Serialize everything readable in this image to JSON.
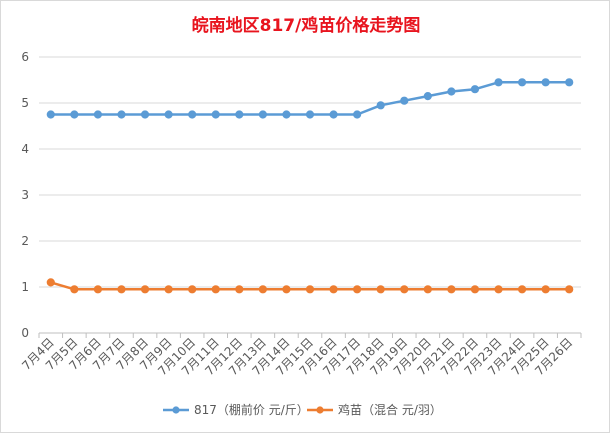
{
  "chart_data": {
    "type": "line",
    "title": "皖南地区817/鸡苗价格走势图",
    "categories": [
      "7月4日",
      "7月5日",
      "7月6日",
      "7月7日",
      "7月8日",
      "7月9日",
      "7月10日",
      "7月11日",
      "7月12日",
      "7月13日",
      "7月14日",
      "7月15日",
      "7月16日",
      "7月17日",
      "7月18日",
      "7月19日",
      "7月20日",
      "7月21日",
      "7月22日",
      "7月23日",
      "7月24日",
      "7月25日",
      "7月26日"
    ],
    "series": [
      {
        "name": "817（棚前价 元/斤）",
        "color": "#5b9bd5",
        "values": [
          4.75,
          4.75,
          4.75,
          4.75,
          4.75,
          4.75,
          4.75,
          4.75,
          4.75,
          4.75,
          4.75,
          4.75,
          4.75,
          4.75,
          4.95,
          5.05,
          5.15,
          5.25,
          5.3,
          5.45,
          5.45,
          5.45,
          5.45
        ]
      },
      {
        "name": "鸡苗（混合 元/羽）",
        "color": "#ed7d31",
        "values": [
          1.1,
          0.95,
          0.95,
          0.95,
          0.95,
          0.95,
          0.95,
          0.95,
          0.95,
          0.95,
          0.95,
          0.95,
          0.95,
          0.95,
          0.95,
          0.95,
          0.95,
          0.95,
          0.95,
          0.95,
          0.95,
          0.95,
          0.95
        ]
      }
    ],
    "ylim": [
      0,
      6
    ],
    "yticks": [
      "0",
      "1",
      "2",
      "3",
      "4",
      "5",
      "6"
    ],
    "xlabel": "",
    "ylabel": "",
    "grid": true,
    "legend": "bottom"
  }
}
